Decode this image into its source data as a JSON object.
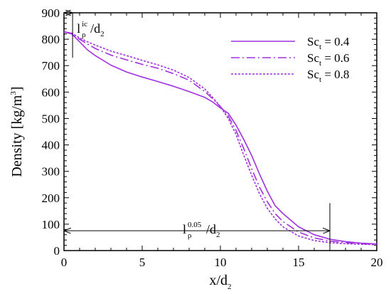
{
  "chart_data": {
    "type": "line",
    "title": "",
    "xlabel": {
      "base": "x/d",
      "sub": "2"
    },
    "ylabel": {
      "prefix": "Density [kg/m",
      "sup": "3",
      "suffix": "]"
    },
    "xlim": [
      0,
      20
    ],
    "ylim": [
      0,
      900
    ],
    "xticks": [
      0,
      5,
      10,
      15,
      20
    ],
    "yticks": [
      0,
      100,
      200,
      300,
      400,
      500,
      600,
      700,
      800,
      900
    ],
    "grid": false,
    "legend_position": "top-right",
    "series": [
      {
        "name": "Sc_t = 0.4",
        "label": {
          "base": "Sc",
          "sub": "t",
          "suffix": " = 0.4"
        },
        "line_style": "solid",
        "color": "#a030e0",
        "x": [
          0,
          0.5,
          1,
          1.5,
          2,
          3,
          4,
          5,
          6,
          7,
          8,
          9,
          9.5,
          10,
          10.5,
          11,
          11.5,
          12,
          12.5,
          13,
          13.5,
          14,
          15,
          16,
          17,
          18,
          19,
          20
        ],
        "y": [
          828,
          820,
          790,
          760,
          738,
          702,
          676,
          657,
          640,
          622,
          602,
          580,
          563,
          540,
          520,
          475,
          420,
          360,
          290,
          225,
          170,
          140,
          90,
          60,
          43,
          34,
          28,
          25
        ]
      },
      {
        "name": "Sc_t = 0.6",
        "label": {
          "base": "Sc",
          "sub": "t",
          "suffix": " = 0.6"
        },
        "line_style": "dashdot",
        "color": "#a030e0",
        "x": [
          0,
          0.5,
          1,
          1.5,
          2,
          3,
          4,
          5,
          6,
          7,
          8,
          9,
          9.5,
          10,
          10.5,
          11,
          11.5,
          12,
          12.5,
          13,
          13.5,
          14,
          15,
          16,
          17,
          18,
          19,
          20
        ],
        "y": [
          828,
          822,
          800,
          782,
          765,
          740,
          722,
          705,
          690,
          670,
          645,
          602,
          575,
          545,
          510,
          455,
          385,
          310,
          240,
          185,
          140,
          110,
          70,
          48,
          36,
          30,
          26,
          24
        ]
      },
      {
        "name": "Sc_t = 0.8",
        "label": {
          "base": "Sc",
          "sub": "t",
          "suffix": " = 0.8"
        },
        "line_style": "dotted",
        "color": "#a030e0",
        "x": [
          0,
          0.5,
          1,
          1.5,
          2,
          3,
          4,
          5,
          6,
          7,
          8,
          9,
          9.5,
          10,
          10.5,
          11,
          11.5,
          12,
          12.5,
          13,
          13.5,
          14,
          15,
          16,
          17,
          18,
          19,
          20
        ],
        "y": [
          828,
          823,
          805,
          790,
          778,
          755,
          738,
          720,
          703,
          683,
          655,
          612,
          580,
          545,
          500,
          440,
          360,
          285,
          215,
          160,
          120,
          90,
          55,
          38,
          30,
          26,
          24,
          22
        ]
      }
    ],
    "annotations": [
      {
        "id": "lic",
        "text": {
          "base": "l",
          "sub": "ρ",
          "sup": "ic",
          "suffix": "/d",
          "sub2": "2"
        },
        "arrow_from_x": 0,
        "arrow_to_x": 0.55,
        "arrow_y": 900,
        "marker_x": 0.55,
        "marker_y_range": [
          730,
          900
        ]
      },
      {
        "id": "l005",
        "text": {
          "base": "l",
          "sub": "ρ",
          "sup": "0.05",
          "suffix": "/d",
          "sub2": "2"
        },
        "arrow_from_x": 0,
        "arrow_to_x": 17.0,
        "arrow_y": 75,
        "marker_x": 17.0,
        "marker_y_range": [
          0,
          180
        ]
      }
    ]
  }
}
